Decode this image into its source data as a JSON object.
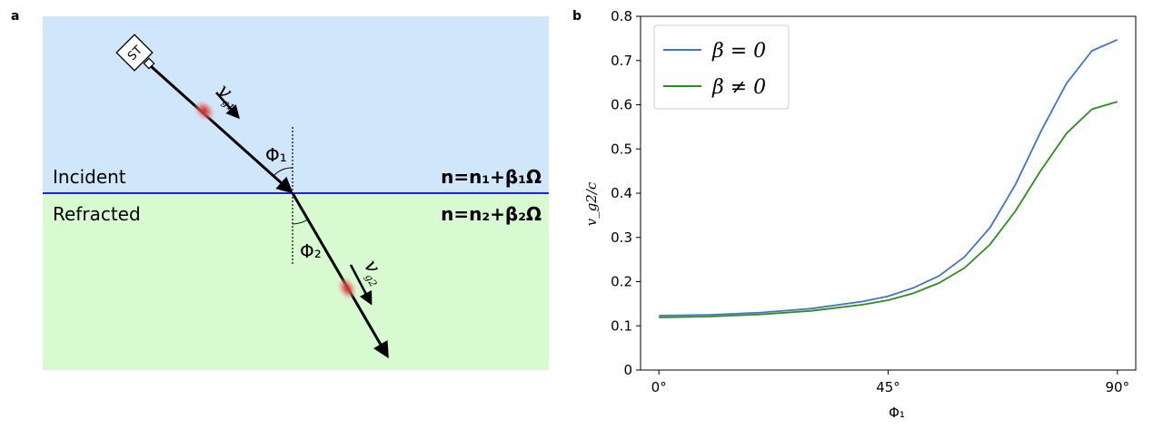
{
  "panel_a": {
    "label": "a",
    "colors": {
      "incident_bg": "#d0e6fb",
      "refracted_bg": "#d7fad1",
      "interface": "#2020e0"
    },
    "source_label": "ST",
    "incident_label": "Incident",
    "refracted_label": "Refracted",
    "n_incident": "n=n₁+β₁Ω",
    "n_refracted": "n=n₂+β₂Ω",
    "phi1_label": "Φ₁",
    "phi2_label": "Φ₂",
    "vg1_label": "v",
    "vg1_sub": "g1",
    "vg2_label": "v",
    "vg2_sub": "g2"
  },
  "panel_b": {
    "label": "b"
  },
  "chart_data": {
    "type": "line",
    "xlabel": "Φ₁",
    "ylabel": "v_g2/c",
    "xlim": [
      -3.6,
      93.6
    ],
    "ylim": [
      0,
      0.8
    ],
    "xticks": [
      0,
      45,
      90
    ],
    "xtick_labels": [
      "0°",
      "45°",
      "90°"
    ],
    "yticks": [
      0,
      0.1,
      0.2,
      0.3,
      0.4,
      0.5,
      0.6,
      0.7,
      0.8
    ],
    "ytick_labels": [
      "0",
      "0.1",
      "0.2",
      "0.3",
      "0.4",
      "0.5",
      "0.6",
      "0.7",
      "0.8"
    ],
    "legend_position": "top-left",
    "grid": false,
    "series": [
      {
        "name": "β = 0",
        "color": "#4472c4",
        "x": [
          0,
          10,
          20,
          30,
          40,
          45,
          50,
          55,
          60,
          65,
          70,
          75,
          80,
          85,
          90
        ],
        "y": [
          0.123,
          0.125,
          0.13,
          0.139,
          0.155,
          0.167,
          0.186,
          0.213,
          0.256,
          0.322,
          0.42,
          0.54,
          0.648,
          0.722,
          0.747
        ]
      },
      {
        "name": "β ≠ 0",
        "color": "#2e8b1e",
        "x": [
          0,
          10,
          20,
          30,
          40,
          45,
          50,
          55,
          60,
          65,
          70,
          75,
          80,
          85,
          90
        ],
        "y": [
          0.119,
          0.121,
          0.126,
          0.134,
          0.148,
          0.158,
          0.174,
          0.197,
          0.231,
          0.284,
          0.36,
          0.452,
          0.535,
          0.59,
          0.607
        ]
      }
    ]
  }
}
